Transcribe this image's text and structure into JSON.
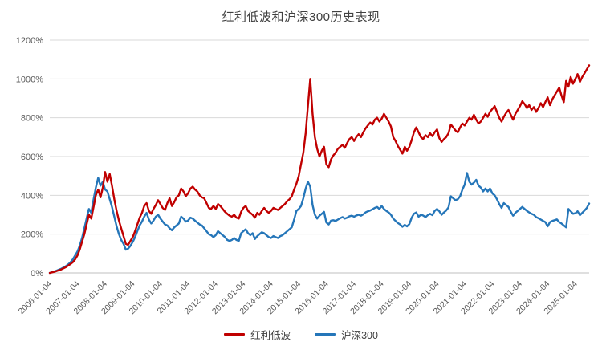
{
  "chart_data": {
    "type": "line",
    "title": "红利低波和沪深300历史表现",
    "xlabel": "",
    "ylabel": "",
    "ylim": [
      0,
      1200
    ],
    "y_ticks": [
      0,
      200,
      400,
      600,
      800,
      1000,
      1200
    ],
    "y_tick_suffix": "%",
    "grid": "horizontal",
    "legend_position": "bottom",
    "x_tick_labels": [
      "2006-01-04",
      "2007-01-04",
      "2008-01-04",
      "2009-01-04",
      "2010-01-04",
      "2011-01-04",
      "2012-01-04",
      "2013-01-04",
      "2014-01-04",
      "2015-01-04",
      "2016-01-04",
      "2017-01-04",
      "2018-01-04",
      "2019-01-04",
      "2020-01-04",
      "2021-01-04",
      "2022-01-04",
      "2023-01-04",
      "2024-01-04",
      "2025-01-04"
    ],
    "x_tick_positions": [
      0,
      12,
      24,
      36,
      48,
      60,
      72,
      84,
      96,
      108,
      120,
      132,
      144,
      156,
      168,
      180,
      192,
      204,
      216,
      228
    ],
    "x_unit": "monthly samples from 2006-01 to 2025-07",
    "series": [
      {
        "name": "红利低波",
        "color": "#c00000",
        "values": [
          0,
          3,
          6,
          10,
          14,
          18,
          24,
          30,
          38,
          46,
          55,
          70,
          90,
          120,
          160,
          200,
          250,
          300,
          280,
          340,
          400,
          430,
          390,
          440,
          520,
          470,
          510,
          450,
          380,
          320,
          270,
          230,
          190,
          150,
          145,
          165,
          185,
          215,
          250,
          285,
          310,
          345,
          360,
          320,
          305,
          330,
          350,
          375,
          355,
          335,
          325,
          360,
          385,
          345,
          365,
          390,
          400,
          435,
          420,
          395,
          410,
          435,
          445,
          430,
          420,
          400,
          390,
          385,
          360,
          335,
          330,
          345,
          330,
          355,
          345,
          330,
          315,
          305,
          295,
          290,
          300,
          285,
          280,
          315,
          335,
          345,
          320,
          310,
          300,
          285,
          310,
          300,
          320,
          335,
          320,
          310,
          320,
          335,
          330,
          325,
          335,
          345,
          355,
          370,
          380,
          395,
          430,
          460,
          500,
          560,
          620,
          720,
          860,
          1000,
          820,
          700,
          640,
          600,
          630,
          650,
          560,
          545,
          585,
          605,
          620,
          640,
          650,
          660,
          645,
          670,
          690,
          700,
          680,
          700,
          715,
          700,
          725,
          745,
          760,
          775,
          765,
          790,
          800,
          780,
          795,
          820,
          800,
          780,
          755,
          700,
          680,
          655,
          635,
          615,
          650,
          630,
          650,
          685,
          725,
          750,
          725,
          700,
          690,
          710,
          700,
          720,
          705,
          725,
          740,
          695,
          675,
          690,
          700,
          720,
          765,
          750,
          735,
          725,
          750,
          770,
          760,
          780,
          800,
          790,
          815,
          790,
          770,
          780,
          800,
          820,
          805,
          830,
          845,
          860,
          830,
          800,
          780,
          805,
          825,
          840,
          815,
          790,
          820,
          840,
          860,
          885,
          870,
          850,
          865,
          840,
          855,
          830,
          850,
          875,
          855,
          880,
          905,
          865,
          895,
          915,
          935,
          955,
          915,
          880,
          990,
          960,
          1010,
          975,
          1000,
          1025,
          985,
          1010,
          1030,
          1050,
          1070
        ]
      },
      {
        "name": "沪深300",
        "color": "#2576b9",
        "values": [
          0,
          4,
          8,
          12,
          17,
          22,
          28,
          35,
          44,
          55,
          70,
          90,
          110,
          140,
          180,
          230,
          280,
          330,
          310,
          380,
          440,
          490,
          450,
          470,
          430,
          420,
          380,
          340,
          290,
          240,
          200,
          170,
          150,
          120,
          125,
          140,
          160,
          185,
          215,
          245,
          265,
          290,
          310,
          275,
          255,
          270,
          290,
          300,
          280,
          265,
          250,
          245,
          230,
          220,
          235,
          245,
          255,
          290,
          280,
          265,
          270,
          285,
          280,
          270,
          260,
          250,
          245,
          230,
          215,
          200,
          195,
          185,
          195,
          215,
          205,
          195,
          185,
          170,
          165,
          170,
          180,
          170,
          165,
          205,
          215,
          225,
          205,
          195,
          205,
          175,
          190,
          200,
          210,
          205,
          195,
          185,
          180,
          190,
          185,
          180,
          190,
          195,
          205,
          215,
          225,
          235,
          275,
          320,
          330,
          345,
          385,
          435,
          470,
          445,
          350,
          300,
          280,
          295,
          305,
          315,
          260,
          250,
          270,
          272,
          268,
          275,
          282,
          288,
          280,
          285,
          292,
          295,
          290,
          296,
          300,
          295,
          302,
          312,
          318,
          322,
          328,
          335,
          340,
          330,
          345,
          330,
          320,
          312,
          300,
          280,
          268,
          258,
          250,
          238,
          248,
          240,
          252,
          285,
          305,
          312,
          290,
          300,
          296,
          288,
          298,
          305,
          298,
          320,
          330,
          318,
          300,
          312,
          322,
          338,
          395,
          385,
          375,
          380,
          395,
          430,
          455,
          515,
          470,
          455,
          465,
          480,
          450,
          440,
          420,
          435,
          420,
          435,
          410,
          400,
          380,
          355,
          335,
          360,
          350,
          340,
          315,
          295,
          310,
          320,
          330,
          340,
          330,
          320,
          312,
          305,
          300,
          288,
          282,
          275,
          268,
          262,
          240,
          262,
          268,
          272,
          276,
          262,
          255,
          245,
          235,
          330,
          318,
          305,
          308,
          318,
          298,
          310,
          322,
          335,
          358
        ]
      }
    ],
    "style": {
      "grid_color": "#d9d9d9",
      "axis_color": "#bfbfbf",
      "tick_label_color": "#595959",
      "title_color": "#404040"
    }
  }
}
